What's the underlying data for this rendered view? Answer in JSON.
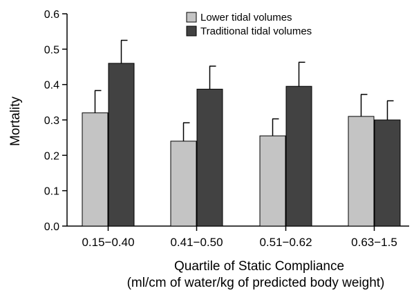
{
  "chart_data": {
    "type": "bar",
    "title": "",
    "ylabel": "Mortality",
    "xlabel_line1": "Quartile of Static Compliance",
    "xlabel_line2": "(ml/cm of water/kg of predicted body weight)",
    "categories": [
      "0.15−0.40",
      "0.41−0.50",
      "0.51−0.62",
      "0.63−1.5"
    ],
    "ylim": [
      0,
      0.6
    ],
    "yticks": [
      0.0,
      0.1,
      0.2,
      0.3,
      0.4,
      0.5,
      0.6
    ],
    "ytick_labels": [
      "0.0",
      "0.1",
      "0.2",
      "0.3",
      "0.4",
      "0.5",
      "0.6"
    ],
    "legend_position": "top-right",
    "grid": false,
    "series": [
      {
        "name": "Lower tidal volumes",
        "color": "#c4c4c4",
        "values": [
          0.32,
          0.24,
          0.255,
          0.31
        ],
        "error_upper": [
          0.383,
          0.292,
          0.303,
          0.372
        ]
      },
      {
        "name": "Traditional tidal volumes",
        "color": "#424242",
        "values": [
          0.46,
          0.387,
          0.395,
          0.3
        ],
        "error_upper": [
          0.525,
          0.452,
          0.463,
          0.354
        ]
      }
    ]
  }
}
